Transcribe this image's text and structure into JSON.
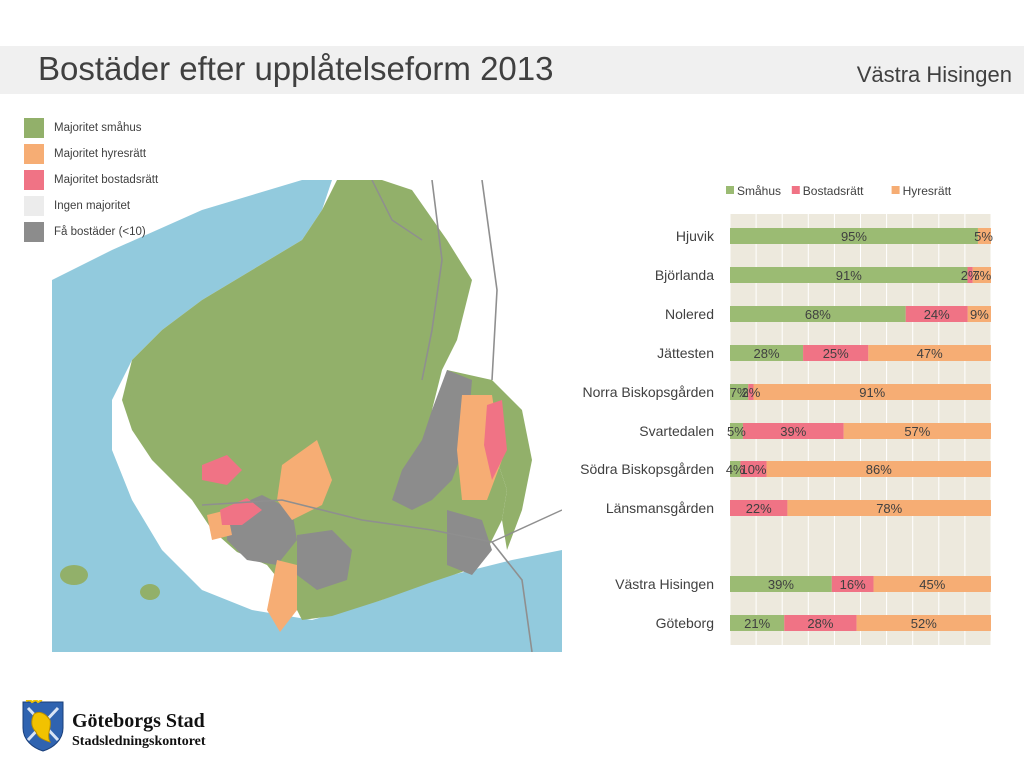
{
  "header": {
    "title": "Bostäder efter upplåtelseform 2013",
    "area": "Västra Hisingen"
  },
  "map_legend": {
    "items": [
      {
        "label": "Majoritet småhus",
        "color": "#92b06a"
      },
      {
        "label": "Majoritet hyresrätt",
        "color": "#f6ad74"
      },
      {
        "label": "Majoritet bostadsrätt",
        "color": "#f07385"
      },
      {
        "label": "Ingen majoritet",
        "color": "#ececec"
      },
      {
        "label": "Få bostäder (<10)",
        "color": "#8c8c8c"
      }
    ]
  },
  "chart_data": {
    "type": "bar",
    "orientation": "horizontal",
    "stacked": "percent",
    "legend_position": "top",
    "categories": [
      "Hjuvik",
      "Björlanda",
      "Nolered",
      "Jättesten",
      "Norra Biskopsgården",
      "Svartedalen",
      "Södra Biskopsgården",
      "Länsmansgården",
      "Västra Hisingen",
      "Göteborg"
    ],
    "series": [
      {
        "name": "Småhus",
        "color": "#9bbb73",
        "values": [
          95,
          91,
          68,
          28,
          7,
          5,
          4,
          0,
          39,
          21
        ],
        "labels": [
          "95%",
          "91%",
          "68%",
          "28%",
          "7%",
          "5%",
          "4%",
          "",
          "39%",
          "21%"
        ]
      },
      {
        "name": "Bostadsrätt",
        "color": "#f07385",
        "values": [
          0,
          2,
          24,
          25,
          2,
          39,
          10,
          22,
          16,
          28
        ],
        "labels": [
          "",
          "2%",
          "24%",
          "25%",
          "2%",
          "39%",
          "10%",
          "22%",
          "16%",
          "28%"
        ]
      },
      {
        "name": "Hyresrätt",
        "color": "#f6ad74",
        "values": [
          5,
          7,
          9,
          47,
          91,
          57,
          86,
          78,
          45,
          52
        ],
        "labels": [
          "5%",
          "7%",
          "9%",
          "47%",
          "91%",
          "57%",
          "86%",
          "78%",
          "45%",
          "52%"
        ]
      }
    ]
  },
  "footer": {
    "org_name": "Göteborgs Stad",
    "department": "Stadsledningskontoret"
  },
  "colors": {
    "water": "#92cadd",
    "road": "#8f8f8f",
    "chart_background": "#ede9dd"
  }
}
